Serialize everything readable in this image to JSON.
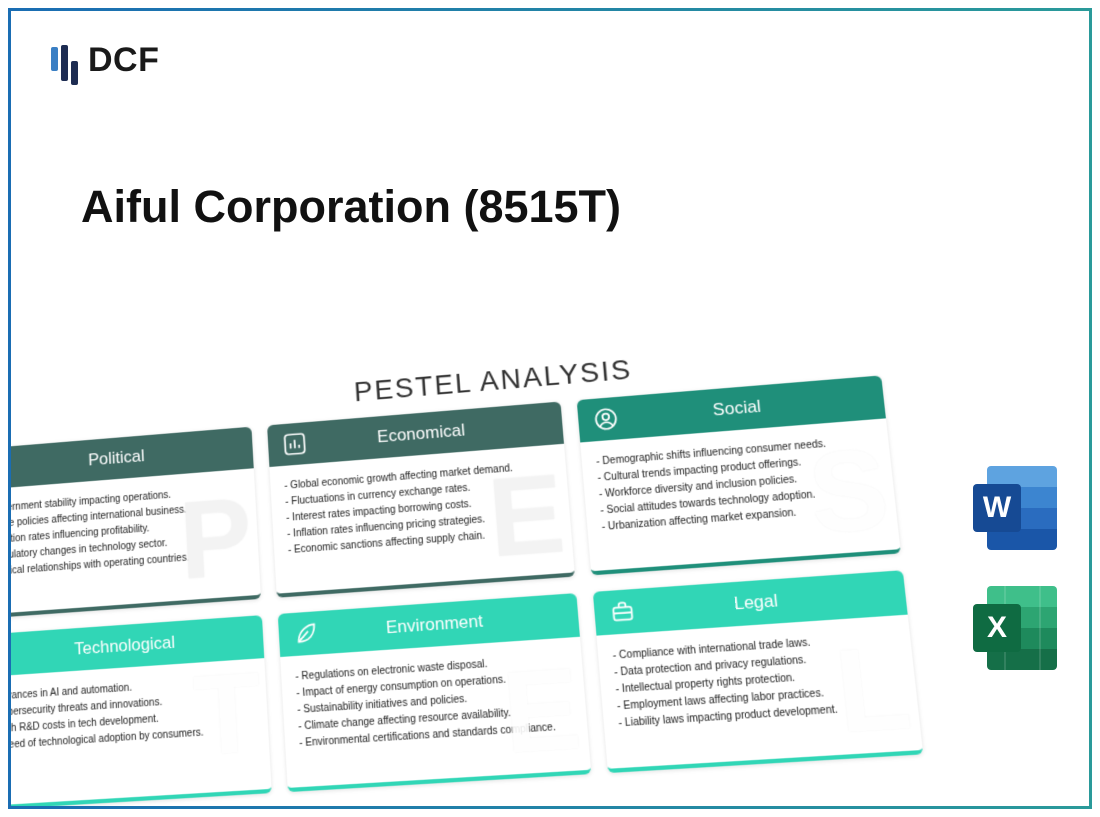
{
  "brand": "DCF",
  "title": "Aiful Corporation (8515T)",
  "pestel": {
    "heading": "PESTEL ANALYSIS",
    "row1_colors": {
      "bg": "#3f6a63"
    },
    "row2_colors": {
      "bg_mid": "#1f8f7a",
      "bg_light": "#31d6b6"
    },
    "cards": [
      {
        "key": "political",
        "tone": "dark",
        "title": "Political",
        "letter": "P",
        "icon": "globe",
        "bullets": [
          "Government stability impacting operations.",
          "Trade policies affecting international business.",
          "Taxation rates influencing profitability.",
          "Regulatory changes in technology sector.",
          "Political relationships with operating countries."
        ]
      },
      {
        "key": "economical",
        "tone": "dark",
        "title": "Economical",
        "letter": "E",
        "icon": "chart",
        "bullets": [
          "Global economic growth affecting market demand.",
          "Fluctuations in currency exchange rates.",
          "Interest rates impacting borrowing costs.",
          "Inflation rates influencing pricing strategies.",
          "Economic sanctions affecting supply chain."
        ]
      },
      {
        "key": "social",
        "tone": "mid",
        "title": "Social",
        "letter": "S",
        "icon": "person",
        "bullets": [
          "Demographic shifts influencing consumer needs.",
          "Cultural trends impacting product offerings.",
          "Workforce diversity and inclusion policies.",
          "Social attitudes towards technology adoption.",
          "Urbanization affecting market expansion."
        ]
      },
      {
        "key": "technological",
        "tone": "light",
        "title": "Technological",
        "letter": "T",
        "icon": "gear",
        "bullets": [
          "Advances in AI and automation.",
          "Cybersecurity threats and innovations.",
          "High R&D costs in tech development.",
          "Speed of technological adoption by consumers."
        ]
      },
      {
        "key": "environment",
        "tone": "light",
        "title": "Environment",
        "letter": "E",
        "icon": "leaf",
        "bullets": [
          "Regulations on electronic waste disposal.",
          "Impact of energy consumption on operations.",
          "Sustainability initiatives and policies.",
          "Climate change affecting resource availability.",
          "Environmental certifications and standards compliance."
        ]
      },
      {
        "key": "legal",
        "tone": "light",
        "title": "Legal",
        "letter": "L",
        "icon": "briefcase",
        "bullets": [
          "Compliance with international trade laws.",
          "Data protection and privacy regulations.",
          "Intellectual property rights protection.",
          "Employment laws affecting labor practices.",
          "Liability laws impacting product development."
        ]
      }
    ]
  },
  "apps": {
    "word": "W",
    "excel": "X"
  }
}
